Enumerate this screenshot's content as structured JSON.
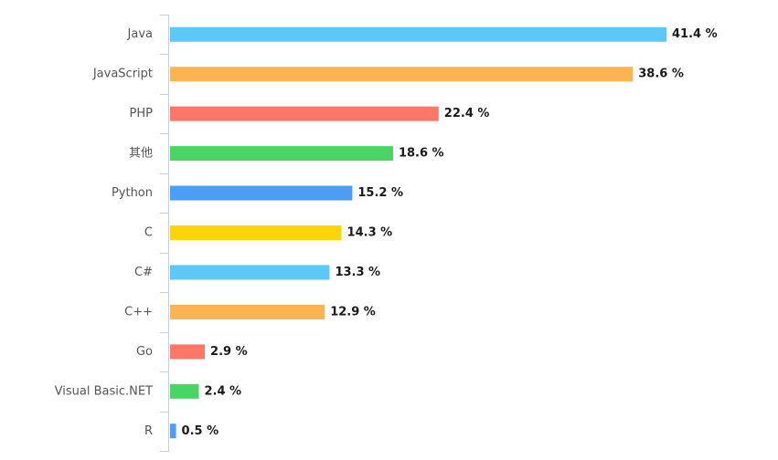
{
  "chart_data": {
    "type": "bar",
    "orientation": "horizontal",
    "title": "",
    "xlabel": "",
    "ylabel": "",
    "xlim": [
      0,
      41.4
    ],
    "grid": false,
    "legend": "none",
    "value_suffix": " %",
    "categories": [
      "Java",
      "JavaScript",
      "PHP",
      "其他",
      "Python",
      "C",
      "C#",
      "C++",
      "Go",
      "Visual Basic.NET",
      "R"
    ],
    "series": [
      {
        "values": [
          41.4,
          38.6,
          22.4,
          18.6,
          15.2,
          14.3,
          13.3,
          12.9,
          2.9,
          2.4,
          0.5
        ]
      }
    ],
    "colors": [
      "#5bc8f7",
      "#fbb450",
      "#fe7667",
      "#49d562",
      "#4a9df8",
      "#ffd500",
      "#5bc8f7",
      "#fbb450",
      "#fe7667",
      "#49d562",
      "#4a9df8"
    ]
  }
}
